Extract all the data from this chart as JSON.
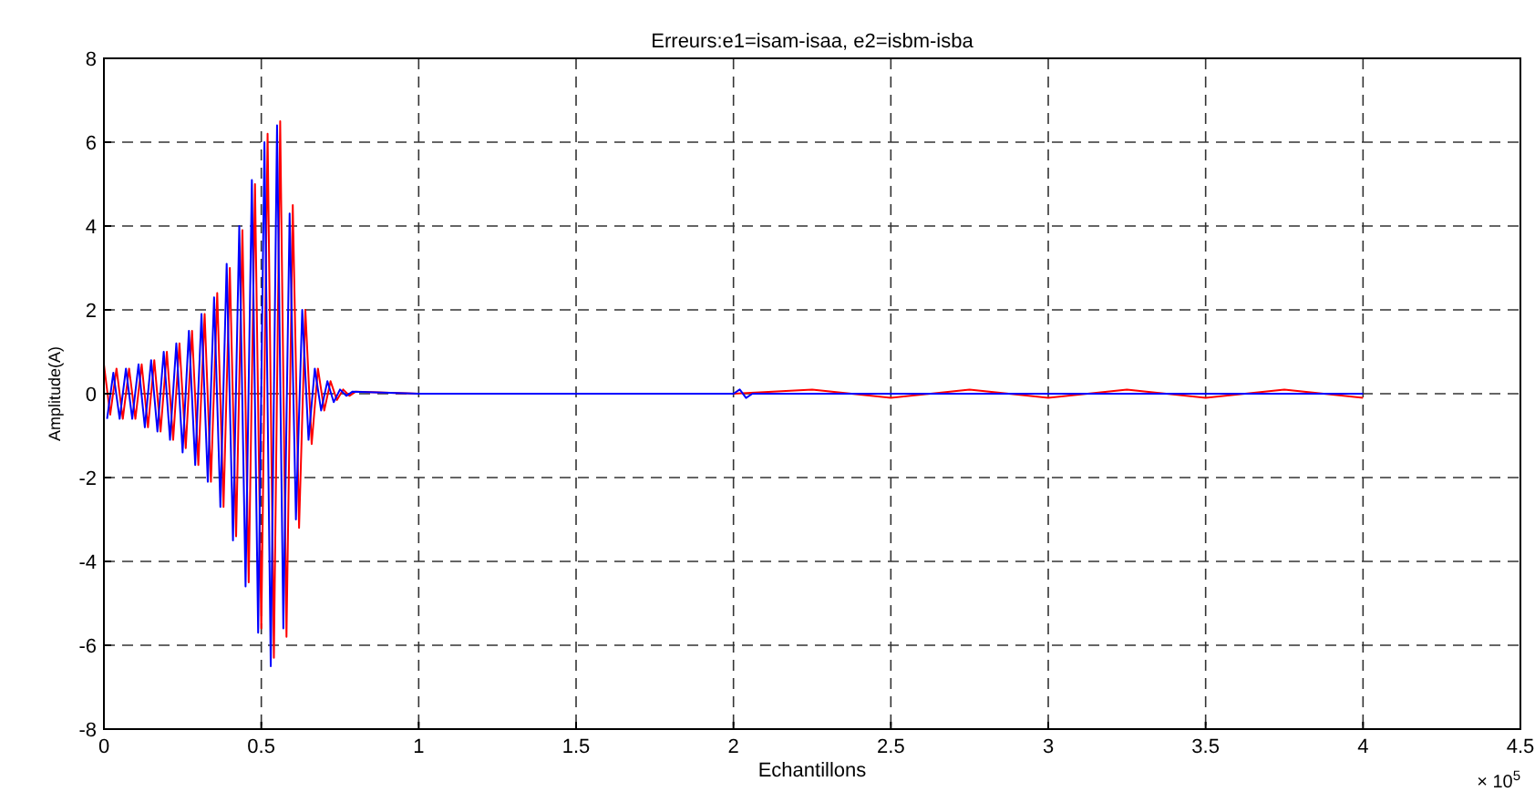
{
  "chart_data": {
    "type": "line",
    "title": "Erreurs:e1=isam-isaa, e2=isbm-isba",
    "xlabel": "Echantillons",
    "ylabel": "Amplitude(A)",
    "annotations": [
      "× 10$^{5}$"
    ],
    "xlim": [
      0,
      4.5
    ],
    "xticks": [
      0,
      0.5,
      1,
      1.5,
      2,
      2.5,
      3,
      3.5,
      4,
      4.5
    ],
    "ylim": [
      -8,
      8
    ],
    "yticks": [
      -8,
      -6,
      -4,
      -2,
      0,
      2,
      4,
      6,
      8
    ],
    "grid": true,
    "line_style": "solid",
    "marker": "none",
    "series": [
      {
        "color": "#ff0000",
        "x": [
          0,
          0.02,
          0.04,
          0.06,
          0.08,
          0.1,
          0.12,
          0.14,
          0.16,
          0.18,
          0.2,
          0.22,
          0.24,
          0.26,
          0.28,
          0.3,
          0.32,
          0.34,
          0.36,
          0.38,
          0.4,
          0.42,
          0.44,
          0.46,
          0.48,
          0.5,
          0.52,
          0.54,
          0.56,
          0.58,
          0.6,
          0.62,
          0.64,
          0.66,
          0.68,
          0.7,
          0.72,
          0.74,
          0.76,
          0.78,
          0.8,
          1,
          1.5,
          2,
          2.25,
          2.5,
          2.75,
          3,
          3.25,
          3.5,
          3.75,
          4
        ],
        "values": [
          0.7,
          -0.5,
          0.6,
          -0.6,
          0.6,
          -0.6,
          0.7,
          -0.8,
          0.8,
          -0.9,
          1.0,
          -1.1,
          1.2,
          -1.3,
          1.5,
          -1.7,
          1.9,
          -2.1,
          2.4,
          -2.7,
          3.0,
          -3.4,
          3.9,
          -4.5,
          5.0,
          -5.6,
          6.2,
          -6.3,
          6.5,
          -5.8,
          4.5,
          -3.2,
          2.0,
          -1.2,
          0.6,
          -0.4,
          0.3,
          -0.15,
          0.1,
          -0.05,
          0.05,
          0,
          0,
          0,
          0.1,
          -0.1,
          0.1,
          -0.1,
          0.1,
          -0.1,
          0.1,
          -0.1
        ]
      },
      {
        "color": "#0000ff",
        "x": [
          0.01,
          0.03,
          0.05,
          0.07,
          0.09,
          0.11,
          0.13,
          0.15,
          0.17,
          0.19,
          0.21,
          0.23,
          0.25,
          0.27,
          0.29,
          0.31,
          0.33,
          0.35,
          0.37,
          0.39,
          0.41,
          0.43,
          0.45,
          0.47,
          0.49,
          0.51,
          0.53,
          0.55,
          0.57,
          0.59,
          0.61,
          0.63,
          0.65,
          0.67,
          0.69,
          0.71,
          0.73,
          0.75,
          0.77,
          0.79,
          1,
          1.5,
          2,
          2.02,
          2.04,
          2.06,
          2.5,
          3,
          3.5,
          4
        ],
        "values": [
          -0.6,
          0.5,
          -0.6,
          0.6,
          -0.6,
          0.7,
          -0.8,
          0.8,
          -0.9,
          1.0,
          -1.1,
          1.2,
          -1.4,
          1.5,
          -1.7,
          1.9,
          -2.1,
          2.3,
          -2.7,
          3.1,
          -3.5,
          4.0,
          -4.6,
          5.1,
          -5.7,
          6.0,
          -6.5,
          6.4,
          -5.6,
          4.3,
          -3.0,
          2.0,
          -1.1,
          0.6,
          -0.4,
          0.3,
          -0.2,
          0.1,
          -0.05,
          0.05,
          0,
          0,
          0,
          0.1,
          -0.1,
          0,
          0,
          0,
          0,
          0
        ]
      }
    ]
  }
}
